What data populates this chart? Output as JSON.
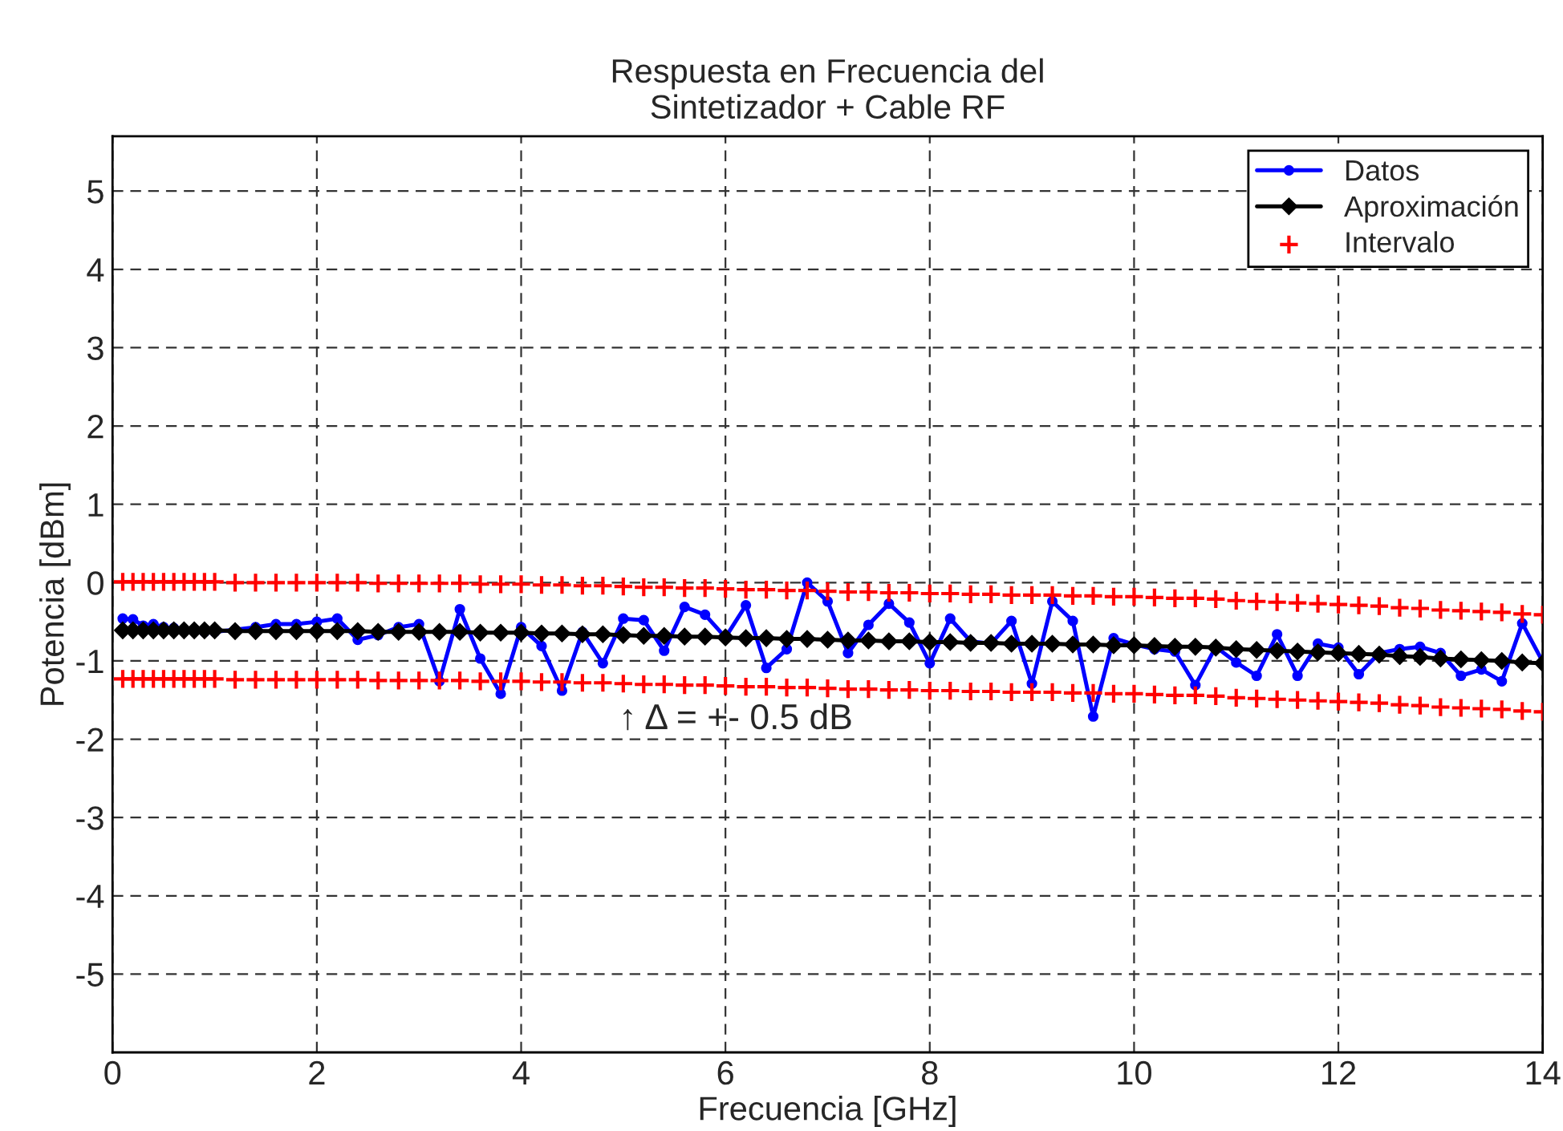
{
  "chart_data": {
    "type": "line",
    "title": "Respuesta en Frecuencia del\nSintetizador + Cable RF",
    "xlabel": "Frecuencia [GHz]",
    "ylabel": "Potencia [dBm]",
    "x": [
      0.1,
      0.2,
      0.3,
      0.4,
      0.5,
      0.6,
      0.7,
      0.8,
      0.9,
      1.0,
      1.2,
      1.4,
      1.6,
      1.8,
      2.0,
      2.2,
      2.4,
      2.6,
      2.8,
      3.0,
      3.2,
      3.4,
      3.6,
      3.8,
      4.0,
      4.2,
      4.4,
      4.6,
      4.8,
      5.0,
      5.2,
      5.4,
      5.6,
      5.8,
      6.0,
      6.2,
      6.4,
      6.6,
      6.8,
      7.0,
      7.2,
      7.4,
      7.6,
      7.8,
      8.0,
      8.2,
      8.4,
      8.6,
      8.8,
      9.0,
      9.2,
      9.4,
      9.6,
      9.8,
      10.0,
      10.2,
      10.4,
      10.6,
      10.8,
      11.0,
      11.2,
      11.4,
      11.6,
      11.8,
      12.0,
      12.2,
      12.4,
      12.6,
      12.8,
      13.0,
      13.2,
      13.4,
      13.6,
      13.8,
      14.0
    ],
    "series": [
      {
        "name": "Datos",
        "marker": "circle",
        "color": "#0000ff",
        "values": [
          -0.46,
          -0.47,
          -0.55,
          -0.53,
          -0.57,
          -0.58,
          -0.6,
          -0.62,
          -0.63,
          -0.63,
          -0.6,
          -0.57,
          -0.53,
          -0.53,
          -0.5,
          -0.46,
          -0.73,
          -0.67,
          -0.57,
          -0.53,
          -1.26,
          -0.34,
          -0.97,
          -1.42,
          -0.57,
          -0.81,
          -1.38,
          -0.63,
          -1.03,
          -0.46,
          -0.48,
          -0.87,
          -0.31,
          -0.41,
          -0.7,
          -0.29,
          -1.09,
          -0.85,
          0.0,
          -0.24,
          -0.9,
          -0.54,
          -0.27,
          -0.51,
          -1.03,
          -0.46,
          -0.75,
          -0.78,
          -0.49,
          -1.29,
          -0.24,
          -0.49,
          -1.71,
          -0.71,
          -0.79,
          -0.85,
          -0.88,
          -1.31,
          -0.82,
          -1.02,
          -1.19,
          -0.66,
          -1.19,
          -0.78,
          -0.83,
          -1.17,
          -0.9,
          -0.85,
          -0.82,
          -0.9,
          -1.19,
          -1.11,
          -1.26,
          -0.52,
          -1.01
        ]
      },
      {
        "name": "Aproximación",
        "marker": "diamond",
        "color": "#000000",
        "values": [
          -0.61,
          -0.61,
          -0.61,
          -0.61,
          -0.61,
          -0.61,
          -0.61,
          -0.61,
          -0.61,
          -0.61,
          -0.62,
          -0.62,
          -0.62,
          -0.62,
          -0.62,
          -0.62,
          -0.62,
          -0.63,
          -0.63,
          -0.63,
          -0.63,
          -0.63,
          -0.64,
          -0.64,
          -0.64,
          -0.65,
          -0.65,
          -0.66,
          -0.66,
          -0.67,
          -0.68,
          -0.68,
          -0.69,
          -0.69,
          -0.7,
          -0.71,
          -0.71,
          -0.72,
          -0.72,
          -0.73,
          -0.74,
          -0.74,
          -0.75,
          -0.75,
          -0.76,
          -0.76,
          -0.77,
          -0.77,
          -0.78,
          -0.78,
          -0.78,
          -0.79,
          -0.79,
          -0.8,
          -0.8,
          -0.81,
          -0.82,
          -0.82,
          -0.83,
          -0.85,
          -0.86,
          -0.87,
          -0.88,
          -0.89,
          -0.9,
          -0.91,
          -0.92,
          -0.94,
          -0.95,
          -0.97,
          -0.98,
          -0.99,
          -1.0,
          -1.02,
          -1.03
        ]
      },
      {
        "name": "Intervalo",
        "type": "scatter",
        "marker": "cross",
        "color": "#ff0000",
        "values": [
          0.01,
          0.01,
          0.01,
          0.01,
          0.01,
          0.01,
          0.01,
          0.01,
          0.01,
          0.01,
          0.0,
          0.0,
          0.0,
          0.0,
          0.0,
          0.0,
          0.0,
          -0.01,
          -0.01,
          -0.01,
          -0.01,
          -0.01,
          -0.02,
          -0.02,
          -0.02,
          -0.03,
          -0.03,
          -0.04,
          -0.04,
          -0.05,
          -0.06,
          -0.06,
          -0.07,
          -0.07,
          -0.08,
          -0.09,
          -0.09,
          -0.1,
          -0.1,
          -0.11,
          -0.12,
          -0.12,
          -0.13,
          -0.13,
          -0.14,
          -0.14,
          -0.15,
          -0.15,
          -0.16,
          -0.16,
          -0.16,
          -0.17,
          -0.17,
          -0.18,
          -0.18,
          -0.19,
          -0.2,
          -0.2,
          -0.21,
          -0.23,
          -0.24,
          -0.25,
          -0.26,
          -0.27,
          -0.28,
          -0.29,
          -0.3,
          -0.32,
          -0.33,
          -0.35,
          -0.36,
          -0.37,
          -0.38,
          -0.4,
          -0.41
        ]
      },
      {
        "type": "scatter",
        "marker": "cross",
        "color": "#ff0000",
        "values": [
          -1.23,
          -1.23,
          -1.23,
          -1.23,
          -1.23,
          -1.23,
          -1.23,
          -1.23,
          -1.23,
          -1.23,
          -1.24,
          -1.24,
          -1.24,
          -1.24,
          -1.24,
          -1.24,
          -1.24,
          -1.25,
          -1.25,
          -1.25,
          -1.25,
          -1.25,
          -1.26,
          -1.26,
          -1.26,
          -1.27,
          -1.27,
          -1.28,
          -1.28,
          -1.29,
          -1.3,
          -1.3,
          -1.31,
          -1.31,
          -1.32,
          -1.33,
          -1.33,
          -1.34,
          -1.34,
          -1.35,
          -1.36,
          -1.36,
          -1.37,
          -1.37,
          -1.38,
          -1.38,
          -1.39,
          -1.39,
          -1.4,
          -1.4,
          -1.4,
          -1.41,
          -1.41,
          -1.42,
          -1.42,
          -1.43,
          -1.44,
          -1.44,
          -1.45,
          -1.47,
          -1.48,
          -1.49,
          -1.5,
          -1.51,
          -1.52,
          -1.53,
          -1.54,
          -1.56,
          -1.57,
          -1.59,
          -1.6,
          -1.61,
          -1.62,
          -1.64,
          -1.65
        ]
      }
    ],
    "annotations": [
      "↑ Δ = +- 0.5 dB"
    ],
    "xlim": [
      0,
      14
    ],
    "xticks": [
      0,
      2,
      4,
      6,
      8,
      10,
      12,
      14
    ],
    "ylim": [
      -6,
      5.7
    ],
    "yticks": [
      -5,
      -4,
      -3,
      -2,
      -1,
      0,
      1,
      2,
      3,
      4,
      5
    ],
    "grid": true,
    "legend": "top right"
  }
}
